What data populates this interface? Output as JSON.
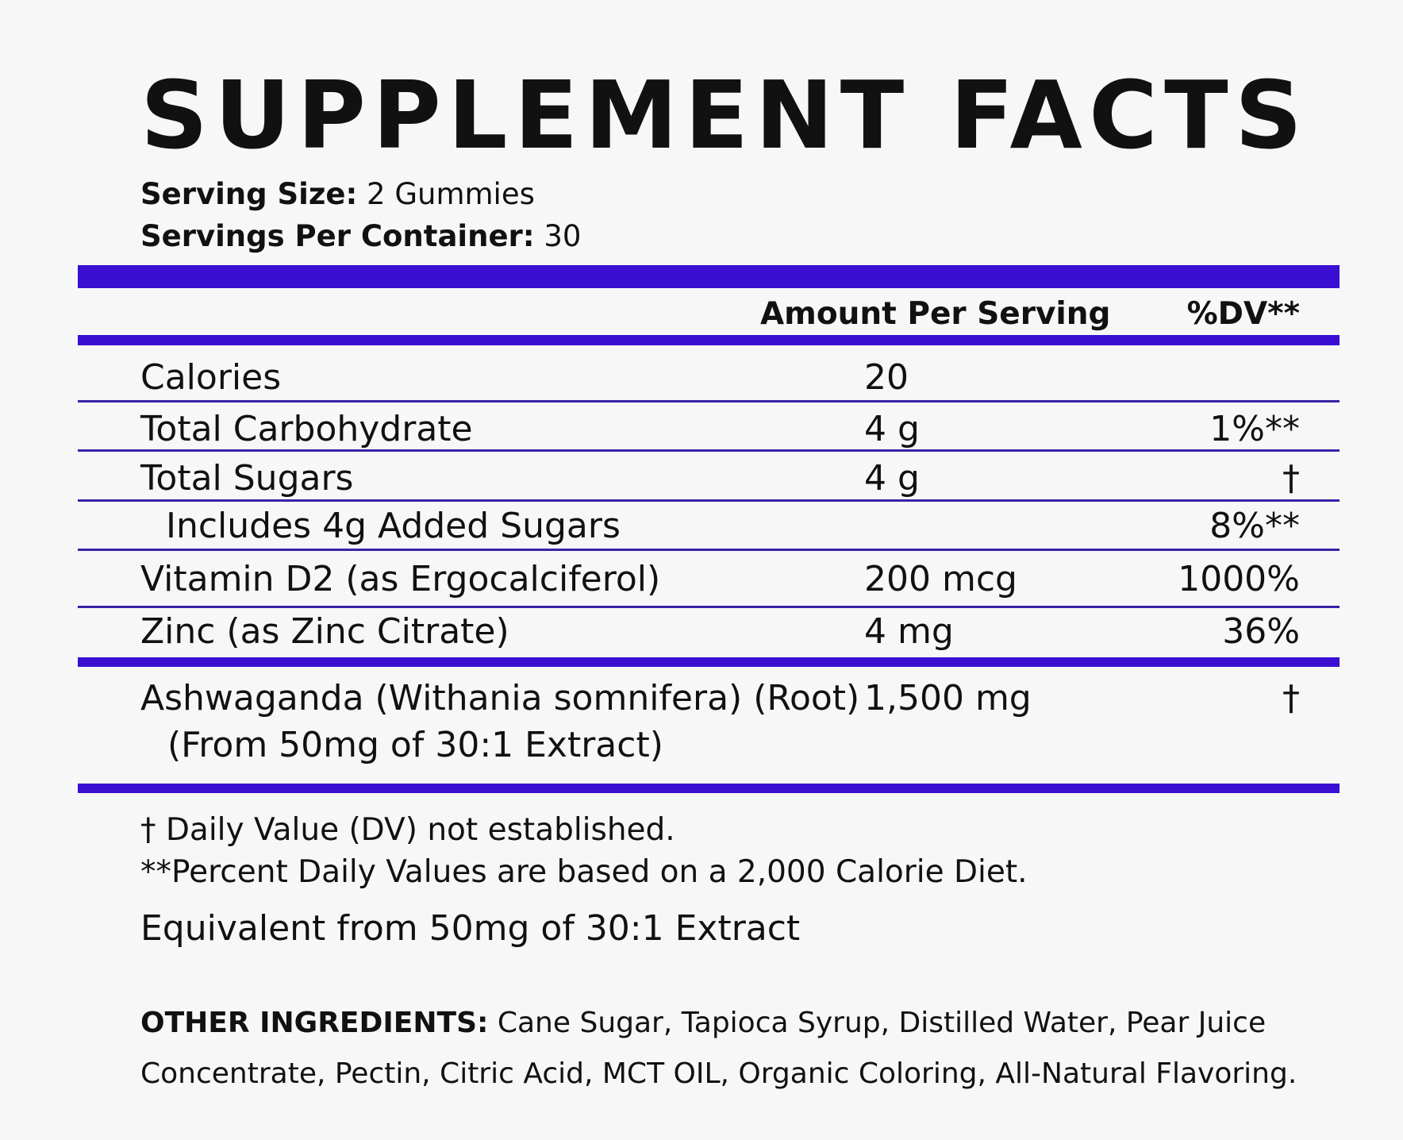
{
  "header": {
    "title": "SUPPLEMENT FACTS",
    "serving_size": {
      "label": "Serving Size:",
      "value": "2 Gummies"
    },
    "servings_per_container": {
      "label": "Servings Per Container:",
      "value": "30"
    }
  },
  "table": {
    "columns": {
      "amount": "Amount Per Serving",
      "dv": "%DV**"
    },
    "rows": [
      {
        "name": "Calories",
        "amount": "20"
      },
      {
        "name": "Total Carbohydrate",
        "amount": "4 g",
        "dv": "1%**"
      },
      {
        "name": "Total Sugars",
        "amount": "4 g",
        "dv": "†"
      },
      {
        "name": "Includes 4g Added Sugars",
        "dv": "8%**"
      },
      {
        "name": "Vitamin D2 (as Ergocalciferol)",
        "amount": "200 mcg",
        "dv": "1000%"
      },
      {
        "name": "Zinc (as Zinc Citrate)",
        "amount": "4 mg",
        "dv": "36%"
      },
      {
        "name": "Ashwaganda (Withania somnifera) (Root)",
        "sub": "(From 50mg of 30:1 Extract)",
        "amount": "1,500 mg",
        "dv": "†"
      }
    ]
  },
  "footnotes": [
    "† Daily Value (DV) not established.",
    "**Percent Daily Values are based on a 2,000 Calorie Diet."
  ],
  "equivalent": "Equivalent from 50mg of 30:1  Extract",
  "other_ingredients": {
    "label": "OTHER INGREDIENTS:",
    "text_line1": "Cane Sugar, Tapioca Syrup, Distilled Water, Pear Juice",
    "text_line2": "Concentrate, Pectin, Citric Acid, MCT OIL, Organic Coloring, All-Natural Flavoring."
  }
}
